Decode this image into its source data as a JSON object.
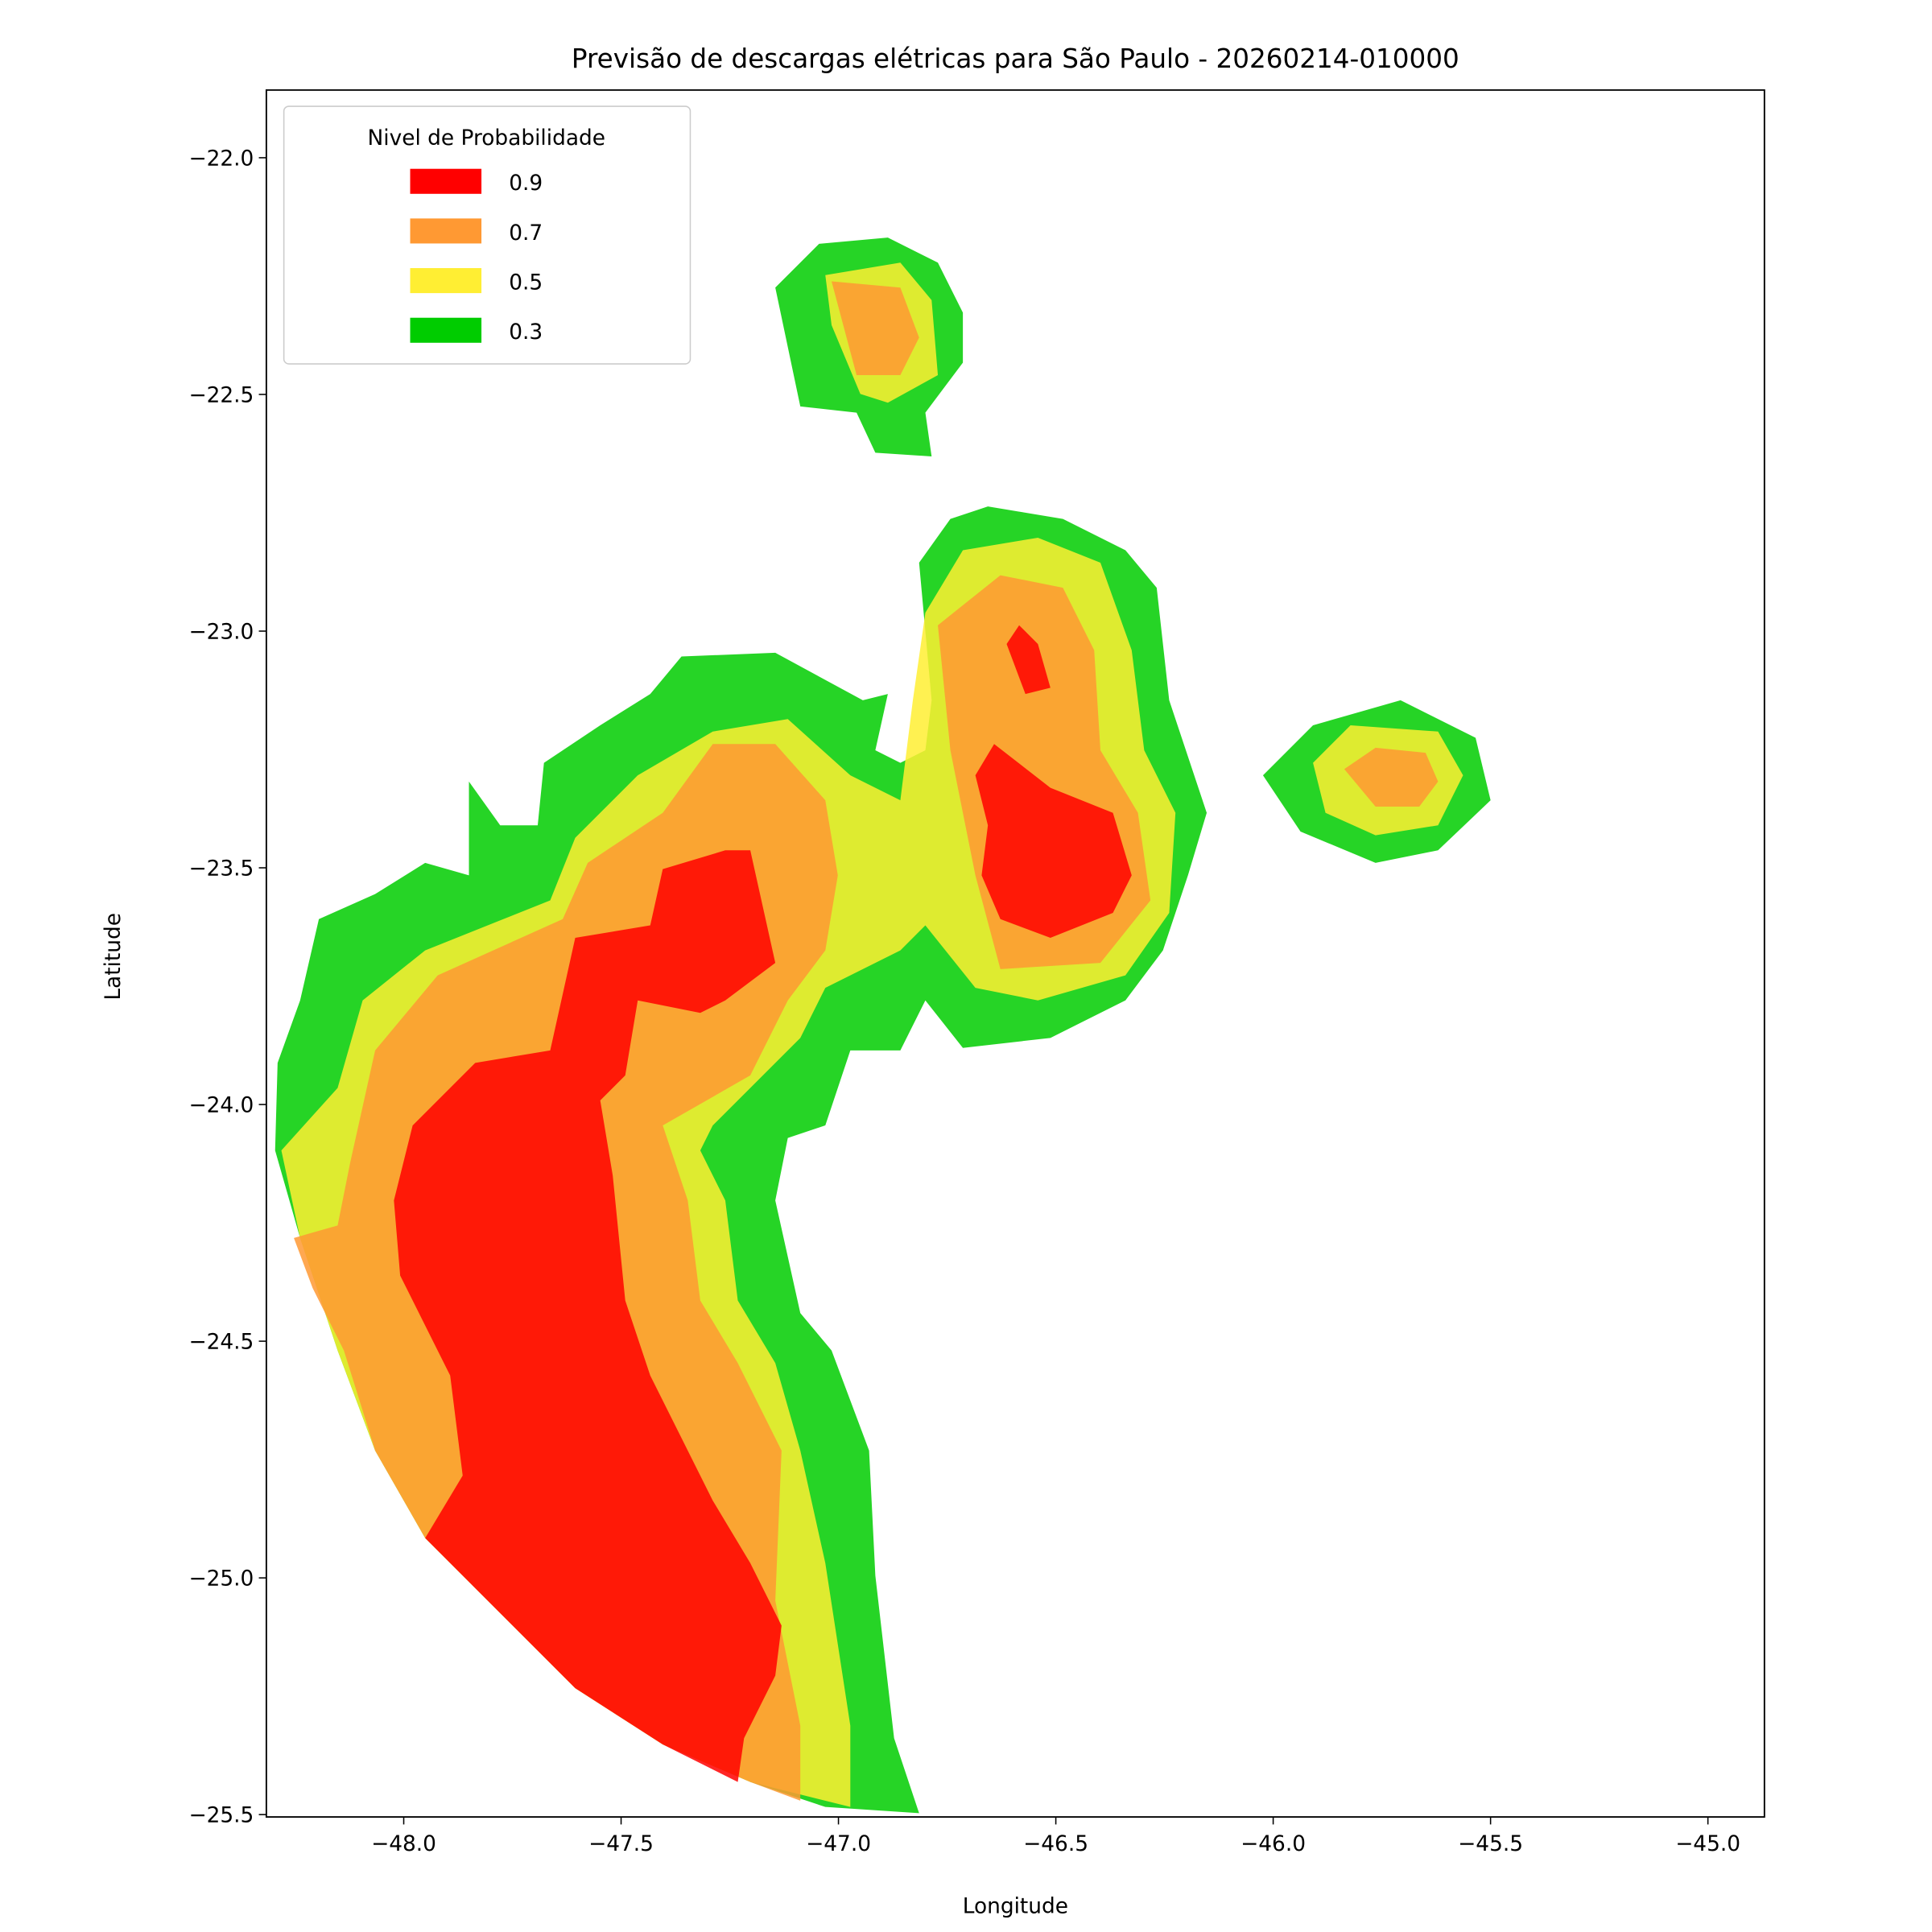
{
  "chart_data": {
    "type": "contour",
    "title": "Previsão de descargas elétricas para São Paulo - 20260214-010000",
    "x_label": "Longitude",
    "y_label": "Latitude",
    "xlim": [
      -48.316,
      -44.87
    ],
    "ylim": [
      -25.505,
      -21.857
    ],
    "xticks": [
      {
        "value": -48.0,
        "label": "−48.0"
      },
      {
        "value": -47.5,
        "label": "−47.5"
      },
      {
        "value": -47.0,
        "label": "−47.0"
      },
      {
        "value": -46.5,
        "label": "−46.5"
      },
      {
        "value": -46.0,
        "label": "−46.0"
      },
      {
        "value": -45.5,
        "label": "−45.5"
      },
      {
        "value": -45.0,
        "label": "−45.0"
      }
    ],
    "yticks": [
      {
        "value": -22.0,
        "label": "−22.0"
      },
      {
        "value": -22.5,
        "label": "−22.5"
      },
      {
        "value": -23.0,
        "label": "−23.0"
      },
      {
        "value": -23.5,
        "label": "−23.5"
      },
      {
        "value": -24.0,
        "label": "−24.0"
      },
      {
        "value": -24.5,
        "label": "−24.5"
      },
      {
        "value": -25.0,
        "label": "−25.0"
      },
      {
        "value": -25.5,
        "label": "−25.5"
      }
    ],
    "legend_title": "Nivel de Probabilidade",
    "legend": "upper left",
    "alpha": 0.85,
    "levels": [
      {
        "value": 0.9,
        "color": "#ff0000"
      },
      {
        "value": 0.7,
        "color": "#ff9933"
      },
      {
        "value": 0.5,
        "color": "#ffee33"
      },
      {
        "value": 0.3,
        "color": "#00cc00"
      }
    ]
  }
}
